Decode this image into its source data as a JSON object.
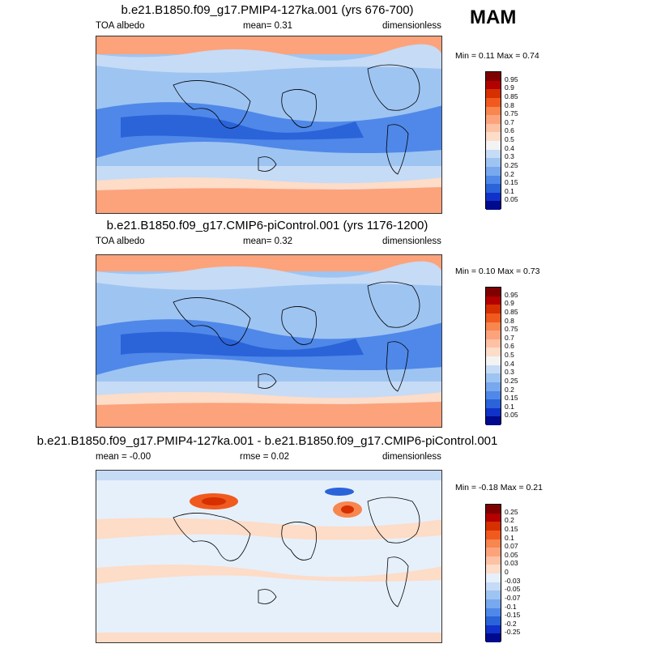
{
  "season": "MAM",
  "panels": [
    {
      "title": "b.e21.B1850.f09_g17.PMIP4-127ka.001 (yrs 676-700)",
      "left_label": "TOA albedo",
      "center_label": "mean=   0.31",
      "right_label": "dimensionless",
      "minmax": "Min =   0.11 Max =   0.74",
      "kind": "abs",
      "colorbar_labels": [
        "0.95",
        "0.9",
        "0.85",
        "0.8",
        "0.75",
        "0.7",
        "0.6",
        "0.5",
        "0.4",
        "0.3",
        "0.25",
        "0.2",
        "0.15",
        "0.1",
        "0.05"
      ]
    },
    {
      "title": "b.e21.B1850.f09_g17.CMIP6-piControl.001 (yrs 1176-1200)",
      "left_label": "TOA albedo",
      "center_label": "mean=   0.32",
      "right_label": "dimensionless",
      "minmax": "Min =   0.10 Max =   0.73",
      "kind": "abs",
      "colorbar_labels": [
        "0.95",
        "0.9",
        "0.85",
        "0.8",
        "0.75",
        "0.7",
        "0.6",
        "0.5",
        "0.4",
        "0.3",
        "0.25",
        "0.2",
        "0.15",
        "0.1",
        "0.05"
      ]
    },
    {
      "title": "b.e21.B1850.f09_g17.PMIP4-127ka.001 - b.e21.B1850.f09_g17.CMIP6-piControl.001",
      "left_label": "mean =   -0.00",
      "center_label": "rmse =   0.02",
      "right_label": "dimensionless",
      "minmax": "Min =   -0.18 Max =   0.21",
      "kind": "diff",
      "colorbar_labels": [
        "0.25",
        "0.2",
        "0.15",
        "0.1",
        "0.07",
        "0.05",
        "0.03",
        "0",
        "-0.03",
        "-0.05",
        "-0.07",
        "-0.1",
        "-0.15",
        "-0.2",
        "-0.25"
      ]
    }
  ],
  "colors": {
    "abs_scale": [
      "#7f0000",
      "#b30000",
      "#d62f00",
      "#f05a1e",
      "#f7864f",
      "#fca37c",
      "#fdc1a4",
      "#fddcc8",
      "#f3f3f3",
      "#c6dbf5",
      "#9ec4f2",
      "#78a8ee",
      "#4f88e8",
      "#2b63d9",
      "#1032c8",
      "#000a8c"
    ],
    "diff_scale": [
      "#7f0000",
      "#b30000",
      "#d62f00",
      "#f05a1e",
      "#f7864f",
      "#fca37c",
      "#fdc1a4",
      "#fddcc8",
      "#e6f0fb",
      "#c6dbf5",
      "#9ec4f2",
      "#78a8ee",
      "#4f88e8",
      "#2b63d9",
      "#1032c8",
      "#000a8c"
    ]
  }
}
